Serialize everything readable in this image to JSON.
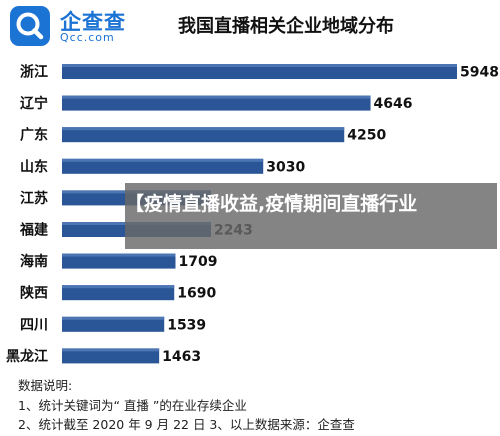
{
  "brand": {
    "name_cn": "企查查",
    "name_en": "Qcc.com",
    "logo_icon": "qcc-magnifier-logo-icon",
    "color": "#1b73d4"
  },
  "overlay": {
    "text": "【疫情直播收益,疫情期间直播行业"
  },
  "notes": {
    "heading": "数据说明:",
    "line1": "1、统计关键词为“ 直播 ”的在业存续企业",
    "line2": "2、统计截至 2020 年 9 月 22 日  3、以上数据来源：企查查"
  },
  "chart_data": {
    "type": "bar",
    "orientation": "horizontal",
    "title": "我国直播相关企业地域分布",
    "categories": [
      "浙江",
      "辽宁",
      "广东",
      "山东",
      "江苏",
      "福建",
      "海南",
      "陕西",
      "四川",
      "黑龙江"
    ],
    "values": [
      5948,
      4646,
      4250,
      3030,
      2243,
      2243,
      1709,
      1690,
      1539,
      1463
    ],
    "value_labels": [
      "5948",
      "4646",
      "4250",
      "3030",
      "",
      "2243",
      "1709",
      "1690",
      "1539",
      "1463"
    ],
    "xlim": [
      0,
      5948
    ],
    "bar_color": "#2a5596",
    "grid": false,
    "legend": "none"
  }
}
